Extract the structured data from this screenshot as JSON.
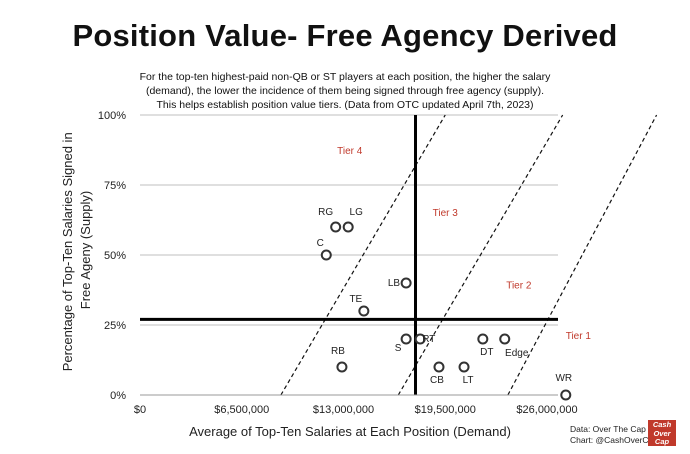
{
  "chart_data": {
    "type": "scatter",
    "title": "Position Value- Free Agency Derived",
    "subtitle": [
      "For the top-ten highest-paid non-QB or ST players at each position, the higher the salary",
      "(demand), the lower the incidence of them being signed through free agency (supply).",
      "This helps establish position value tiers. (Data from OTC updated April 7th, 2023)"
    ],
    "xlabel": "Average of Top-Ten Salaries at Each Position (Demand)",
    "ylabel": [
      "Percentage of Top-Ten  Salaries Signed in",
      "Free Ageny (Supply)"
    ],
    "xlim": [
      0,
      26000000
    ],
    "ylim": [
      0,
      100
    ],
    "x_ticks": [
      {
        "value": 0,
        "label": "$0"
      },
      {
        "value": 6500000,
        "label": "$6,500,000"
      },
      {
        "value": 13000000,
        "label": "$13,000,000"
      },
      {
        "value": 19500000,
        "label": "$19,500,000"
      },
      {
        "value": 26000000,
        "label": "$26,000,000"
      }
    ],
    "y_ticks": [
      {
        "value": 0,
        "label": "0%"
      },
      {
        "value": 25,
        "label": "25%"
      },
      {
        "value": 50,
        "label": "50%"
      },
      {
        "value": 75,
        "label": "75%"
      },
      {
        "value": 100,
        "label": "100%"
      }
    ],
    "grid": "horizontal",
    "points": [
      {
        "label": "RG",
        "x": 12500000,
        "y": 60
      },
      {
        "label": "LG",
        "x": 13300000,
        "y": 60
      },
      {
        "label": "C",
        "x": 11900000,
        "y": 50
      },
      {
        "label": "LB",
        "x": 17000000,
        "y": 40
      },
      {
        "label": "TE",
        "x": 14300000,
        "y": 30
      },
      {
        "label": "RB",
        "x": 12900000,
        "y": 10
      },
      {
        "label": "S",
        "x": 17000000,
        "y": 20
      },
      {
        "label": "RT",
        "x": 17900000,
        "y": 20
      },
      {
        "label": "CB",
        "x": 19100000,
        "y": 10
      },
      {
        "label": "LT",
        "x": 20700000,
        "y": 10
      },
      {
        "label": "DT",
        "x": 21900000,
        "y": 20
      },
      {
        "label": "Edge",
        "x": 23300000,
        "y": 20
      },
      {
        "label": "WR",
        "x": 27200000,
        "y": 0
      }
    ],
    "reference_lines": {
      "vertical_x": 17600000,
      "horizontal_y": 27
    },
    "tier_boundaries": [
      {
        "x1": 9000000,
        "y1": 0,
        "x2": 19500000,
        "y2": 100
      },
      {
        "x1": 16500000,
        "y1": 0,
        "x2": 27000000,
        "y2": 100
      },
      {
        "x1": 23500000,
        "y1": 0,
        "x2": 33000000,
        "y2": 100
      }
    ],
    "tiers": [
      {
        "label": "Tier 4",
        "x": 13400000,
        "y": 86
      },
      {
        "label": "Tier 3",
        "x": 19500000,
        "y": 64
      },
      {
        "label": "Tier 2",
        "x": 24200000,
        "y": 38
      },
      {
        "label": "Tier 1",
        "x": 28000000,
        "y": 20
      }
    ]
  },
  "credits": {
    "line1": "Data: Over The Cap",
    "line2": "Chart: @CashOverCap"
  },
  "logo": {
    "line1": "Cash",
    "line2": "Over",
    "line3": "Cap"
  },
  "colors": {
    "points": "#333333",
    "tier": "#c0392b",
    "grid": "#bfbfbf"
  }
}
